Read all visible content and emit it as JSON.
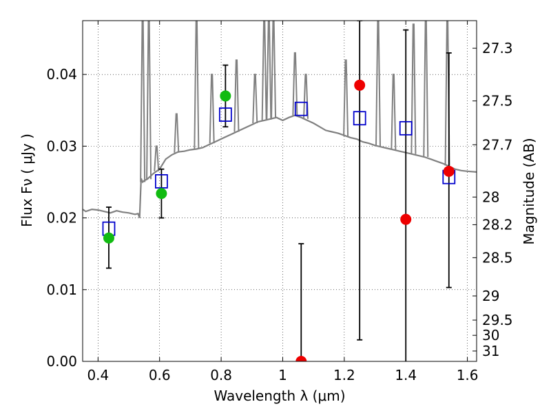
{
  "chart_data": {
    "type": "scatter",
    "xlabel": "Wavelength  λ (μm)",
    "ylabel": "Flux  Fν  ( μJy )",
    "ylabel_right": "Magnitude (AB)",
    "xlim": [
      0.35,
      1.63
    ],
    "ylim": [
      0.0,
      0.0475
    ],
    "grid": true,
    "x_ticks": [
      0.4,
      0.6,
      0.8,
      1.0,
      1.2,
      1.4,
      1.6
    ],
    "x_tick_labels": [
      "0.4",
      "0.6",
      "0.8",
      "1",
      "1.2",
      "1.4",
      "1.6"
    ],
    "y_ticks": [
      0.0,
      0.01,
      0.02,
      0.03,
      0.04
    ],
    "y_tick_labels": [
      "0.00",
      "0.01",
      "0.02",
      "0.03",
      "0.04"
    ],
    "mag_ticks": [
      {
        "mag": 27.3,
        "label": "27.3"
      },
      {
        "mag": 27.5,
        "label": "27.5"
      },
      {
        "mag": 27.7,
        "label": "27.7"
      },
      {
        "mag": 28.0,
        "label": "28"
      },
      {
        "mag": 28.2,
        "label": "28.2"
      },
      {
        "mag": 28.5,
        "label": "28.5"
      },
      {
        "mag": 29.0,
        "label": "29"
      },
      {
        "mag": 29.5,
        "label": "29.5"
      },
      {
        "mag": 30.0,
        "label": "30"
      },
      {
        "mag": 31.0,
        "label": "31"
      }
    ],
    "colors": {
      "sed": "#808080",
      "model": "#0000cc",
      "green": "#11bb11",
      "red": "#ee0000",
      "errorbar": "#000000"
    },
    "series": [
      {
        "name": "SED model spectrum",
        "type": "line",
        "x": [
          0.35,
          0.36,
          0.38,
          0.4,
          0.42,
          0.44,
          0.46,
          0.48,
          0.5,
          0.52,
          0.53,
          0.535,
          0.54,
          0.545,
          0.55,
          0.56,
          0.58,
          0.6,
          0.62,
          0.64,
          0.66,
          0.68,
          0.7,
          0.72,
          0.74,
          0.76,
          0.78,
          0.8,
          0.82,
          0.84,
          0.86,
          0.88,
          0.9,
          0.92,
          0.94,
          0.96,
          0.98,
          1.0,
          1.02,
          1.04,
          1.06,
          1.08,
          1.1,
          1.12,
          1.14,
          1.16,
          1.18,
          1.2,
          1.22,
          1.24,
          1.26,
          1.28,
          1.3,
          1.32,
          1.34,
          1.36,
          1.38,
          1.4,
          1.42,
          1.44,
          1.46,
          1.48,
          1.5,
          1.52,
          1.54,
          1.56,
          1.58,
          1.6,
          1.63
        ],
        "y": [
          0.0212,
          0.0209,
          0.0212,
          0.0211,
          0.0209,
          0.0207,
          0.021,
          0.0208,
          0.0207,
          0.0205,
          0.0206,
          0.02,
          0.0255,
          0.025,
          0.0252,
          0.0254,
          0.0262,
          0.0268,
          0.0282,
          0.0288,
          0.0292,
          0.0293,
          0.0295,
          0.0296,
          0.0298,
          0.0302,
          0.0306,
          0.031,
          0.0314,
          0.0318,
          0.0322,
          0.0326,
          0.033,
          0.0334,
          0.0336,
          0.0338,
          0.034,
          0.0336,
          0.034,
          0.0343,
          0.034,
          0.0336,
          0.0332,
          0.0327,
          0.0322,
          0.032,
          0.0318,
          0.0315,
          0.0312,
          0.031,
          0.0306,
          0.0304,
          0.0301,
          0.0299,
          0.0297,
          0.0295,
          0.0293,
          0.0291,
          0.0289,
          0.0287,
          0.0285,
          0.0282,
          0.0279,
          0.0276,
          0.0272,
          0.0268,
          0.0266,
          0.0265,
          0.0264
        ]
      },
      {
        "name": "SED emission lines",
        "type": "spikes",
        "lines": [
          {
            "x": 0.545,
            "base": 0.025,
            "peak": 0.0475
          },
          {
            "x": 0.565,
            "base": 0.0254,
            "peak": 0.0475
          },
          {
            "x": 0.59,
            "base": 0.0265,
            "peak": 0.03
          },
          {
            "x": 0.655,
            "base": 0.0291,
            "peak": 0.0345
          },
          {
            "x": 0.72,
            "base": 0.0296,
            "peak": 0.0475
          },
          {
            "x": 0.77,
            "base": 0.0304,
            "peak": 0.04
          },
          {
            "x": 0.85,
            "base": 0.032,
            "peak": 0.042
          },
          {
            "x": 0.91,
            "base": 0.0332,
            "peak": 0.04
          },
          {
            "x": 0.94,
            "base": 0.0336,
            "peak": 0.0475
          },
          {
            "x": 0.955,
            "base": 0.0337,
            "peak": 0.0475
          },
          {
            "x": 0.97,
            "base": 0.0339,
            "peak": 0.0475
          },
          {
            "x": 1.04,
            "base": 0.0343,
            "peak": 0.043
          },
          {
            "x": 1.075,
            "base": 0.0338,
            "peak": 0.04
          },
          {
            "x": 1.205,
            "base": 0.0314,
            "peak": 0.042
          },
          {
            "x": 1.31,
            "base": 0.03,
            "peak": 0.0475
          },
          {
            "x": 1.36,
            "base": 0.0295,
            "peak": 0.04
          },
          {
            "x": 1.425,
            "base": 0.0289,
            "peak": 0.047
          },
          {
            "x": 1.465,
            "base": 0.0285,
            "peak": 0.0475
          },
          {
            "x": 1.535,
            "base": 0.0273,
            "peak": 0.0475
          }
        ]
      },
      {
        "name": "Model photometry (squares)",
        "type": "scatter",
        "x": [
          0.435,
          0.606,
          0.814,
          1.06,
          1.25,
          1.4,
          1.54
        ],
        "y": [
          0.0185,
          0.0251,
          0.0344,
          0.0352,
          0.0339,
          0.0325,
          0.0257
        ]
      },
      {
        "name": "Detections (green)",
        "type": "scatter",
        "x": [
          0.435,
          0.606,
          0.814
        ],
        "y": [
          0.0172,
          0.0234,
          0.037
        ],
        "yerr_low": [
          0.013,
          0.02,
          0.0327
        ],
        "yerr_high": [
          0.0215,
          0.0268,
          0.0413
        ]
      },
      {
        "name": "Measurements (red)",
        "type": "scatter",
        "x": [
          1.06,
          1.25,
          1.4,
          1.54
        ],
        "y": [
          0.0,
          0.0385,
          0.0198,
          0.0265
        ],
        "yerr_low": [
          0.0,
          0.003,
          -0.001,
          0.0103
        ],
        "yerr_high": [
          0.0164,
          0.0475,
          0.0462,
          0.043
        ]
      }
    ]
  }
}
